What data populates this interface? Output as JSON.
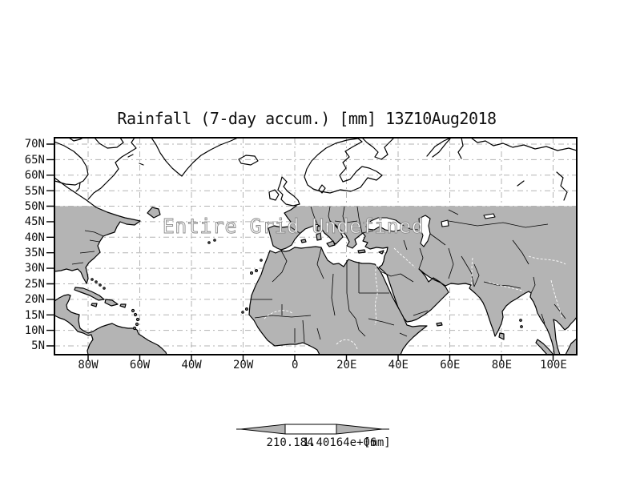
{
  "title": "Rainfall (7-day accum.) [mm] 13Z10Aug2018",
  "overlay_message": "Entire Grid Undefined",
  "axes": {
    "lat_ticks": [
      "70N",
      "65N",
      "60N",
      "55N",
      "50N",
      "45N",
      "40N",
      "35N",
      "30N",
      "25N",
      "20N",
      "15N",
      "10N",
      "5N"
    ],
    "lon_ticks": [
      "80W",
      "60W",
      "40W",
      "20W",
      "0",
      "20E",
      "40E",
      "60E",
      "80E",
      "100E"
    ]
  },
  "colorbar": {
    "min_label": "210.184",
    "max_label": "1.40164e+06",
    "units_label": "[mm]"
  },
  "colors": {
    "land_fill": "#b4b4b4",
    "gridline": "#b3b3b3",
    "coastline": "#000000",
    "overlay_stroke": "#8a8a8a"
  }
}
